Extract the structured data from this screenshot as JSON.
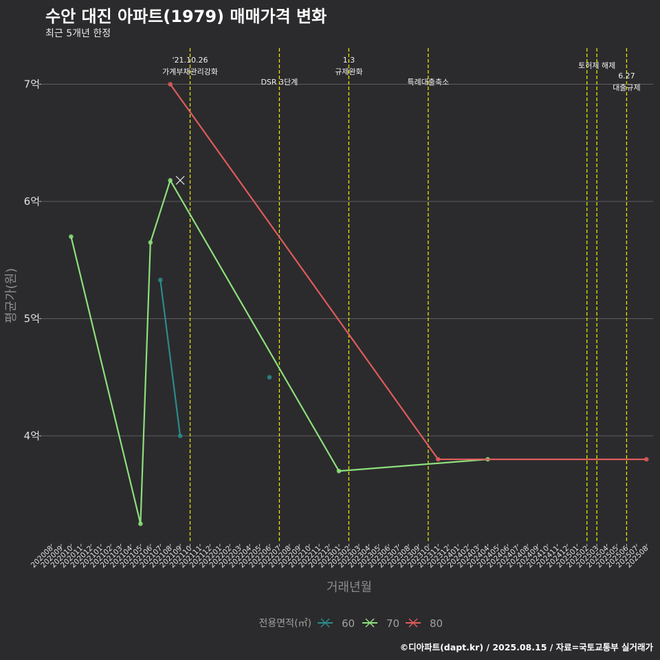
{
  "header": {
    "title": "수안 대진 아파트(1979) 매매가격 변화",
    "subtitle": "최근 5개년 한정"
  },
  "caption": "©디아파트(dapt.kr) / 2025.08.15 / 자료=국토교통부 실거래가",
  "colors": {
    "background": "#2b2b2d",
    "grid": "#5e5e5e",
    "event_line": "#e5e500",
    "s60": "#2a8c8a",
    "s70": "#8ee07c",
    "s80": "#e05c5c"
  },
  "chart_data": {
    "type": "line",
    "xlabel": "거래년월",
    "ylabel": "평균가(원)",
    "x_categories": [
      "202008",
      "202009",
      "202010",
      "202011",
      "202012",
      "202101",
      "202102",
      "202103",
      "202104",
      "202105",
      "202106",
      "202107",
      "202108",
      "202109",
      "202110",
      "202111",
      "202112",
      "202201",
      "202202",
      "202203",
      "202204",
      "202205",
      "202206",
      "202207",
      "202208",
      "202209",
      "202210",
      "202211",
      "202212",
      "202301",
      "202302",
      "202303",
      "202304",
      "202305",
      "202306",
      "202307",
      "202308",
      "202309",
      "202310",
      "202311",
      "202312",
      "202401",
      "202402",
      "202403",
      "202404",
      "202405",
      "202406",
      "202407",
      "202408",
      "202409",
      "202410",
      "202411",
      "202412",
      "202501",
      "202502",
      "202503",
      "202504",
      "202505",
      "202506",
      "202507",
      "202508"
    ],
    "ylim": [
      3.1,
      7.3
    ],
    "y_ticks": [
      {
        "value": 4,
        "label": "4억"
      },
      {
        "value": 5,
        "label": "5억"
      },
      {
        "value": 6,
        "label": "6억"
      },
      {
        "value": 7,
        "label": "7억"
      }
    ],
    "grid": true,
    "legend": {
      "title": "전용면적(㎡)",
      "position": "bottom",
      "items": [
        "60",
        "70",
        "80"
      ]
    },
    "series": [
      {
        "name": "60",
        "color": "#2a8c8a",
        "points": [
          [
            "202107",
            5.33
          ],
          [
            "202109",
            4.0
          ]
        ]
      },
      {
        "name": "70",
        "color": "#8ee07c",
        "points": [
          [
            "202010",
            5.7
          ],
          [
            "202105",
            3.25
          ],
          [
            "202106",
            5.65
          ],
          [
            "202108",
            6.18
          ],
          [
            "202301",
            3.7
          ],
          [
            "202404",
            3.8
          ]
        ]
      },
      {
        "name": "80",
        "color": "#e05c5c",
        "points": [
          [
            "202108",
            7.0
          ],
          [
            "202311",
            3.8
          ],
          [
            "202508",
            3.8
          ]
        ]
      }
    ],
    "extra_points": [
      {
        "x": "202206",
        "y": 4.5,
        "color": "#2a8c8a",
        "marker": "dot"
      },
      {
        "x": "202109",
        "y": 6.18,
        "color": "#d8d8d8",
        "marker": "x"
      }
    ],
    "event_lines": [
      {
        "x": "202110",
        "label": "'21.10.26\n가계부채관리강화",
        "label_row": 0
      },
      {
        "x": "202207",
        "label": "DSR 3단계",
        "label_row": 2
      },
      {
        "x": "202302",
        "label": "1.3\n규제완화",
        "label_row": 0
      },
      {
        "x": "202310",
        "label": "특례대출축소",
        "label_row": 2
      },
      {
        "x": "202502",
        "label": "",
        "label_row": 1
      },
      {
        "x": "202503",
        "label": "토허제 해제",
        "label_row": 1
      },
      {
        "x": "202506",
        "label": "6.27\n대출규제",
        "label_row": 3
      }
    ]
  }
}
